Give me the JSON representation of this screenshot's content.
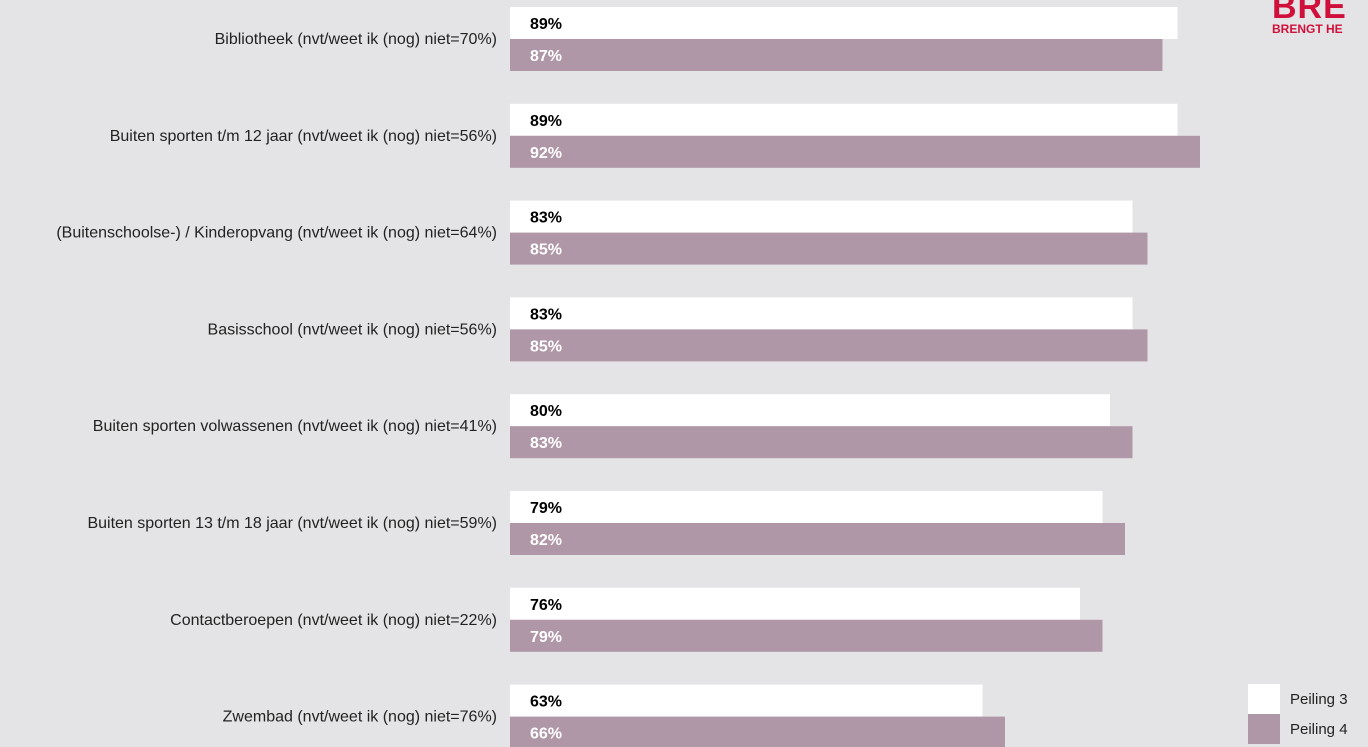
{
  "logo": {
    "main": "BRE",
    "sub": "BRENGT HE"
  },
  "chart_data": {
    "type": "bar",
    "orientation": "horizontal",
    "categories": [
      "Bibliotheek (nvt/weet ik (nog) niet=70%)",
      "Buiten sporten t/m 12 jaar (nvt/weet ik (nog) niet=56%)",
      "(Buitenschoolse-) / Kinderopvang (nvt/weet ik (nog) niet=64%)",
      "Basisschool (nvt/weet ik (nog) niet=56%)",
      "Buiten sporten volwassenen (nvt/weet ik (nog) niet=41%)",
      "Buiten sporten 13 t/m 18 jaar (nvt/weet ik (nog) niet=59%)",
      "Contactberoepen (nvt/weet ik (nog) niet=22%)",
      "Zwembad (nvt/weet ik (nog) niet=76%)"
    ],
    "series": [
      {
        "name": "Peiling 3",
        "color": "#ffffff",
        "label_color": "#000000",
        "values": [
          89,
          89,
          83,
          83,
          80,
          79,
          76,
          63
        ],
        "labels": [
          "89%",
          "89%",
          "83%",
          "83%",
          "80%",
          "79%",
          "76%",
          "63%"
        ]
      },
      {
        "name": "Peiling 4",
        "color": "#b097a8",
        "label_color": "#ffffff",
        "values": [
          87,
          92,
          85,
          85,
          83,
          82,
          79,
          66
        ],
        "labels": [
          "87%",
          "92%",
          "85%",
          "85%",
          "83%",
          "82%",
          "79%",
          "66%"
        ]
      }
    ],
    "xlim": [
      0,
      100
    ],
    "legend": "bottom-right",
    "grid": false
  }
}
